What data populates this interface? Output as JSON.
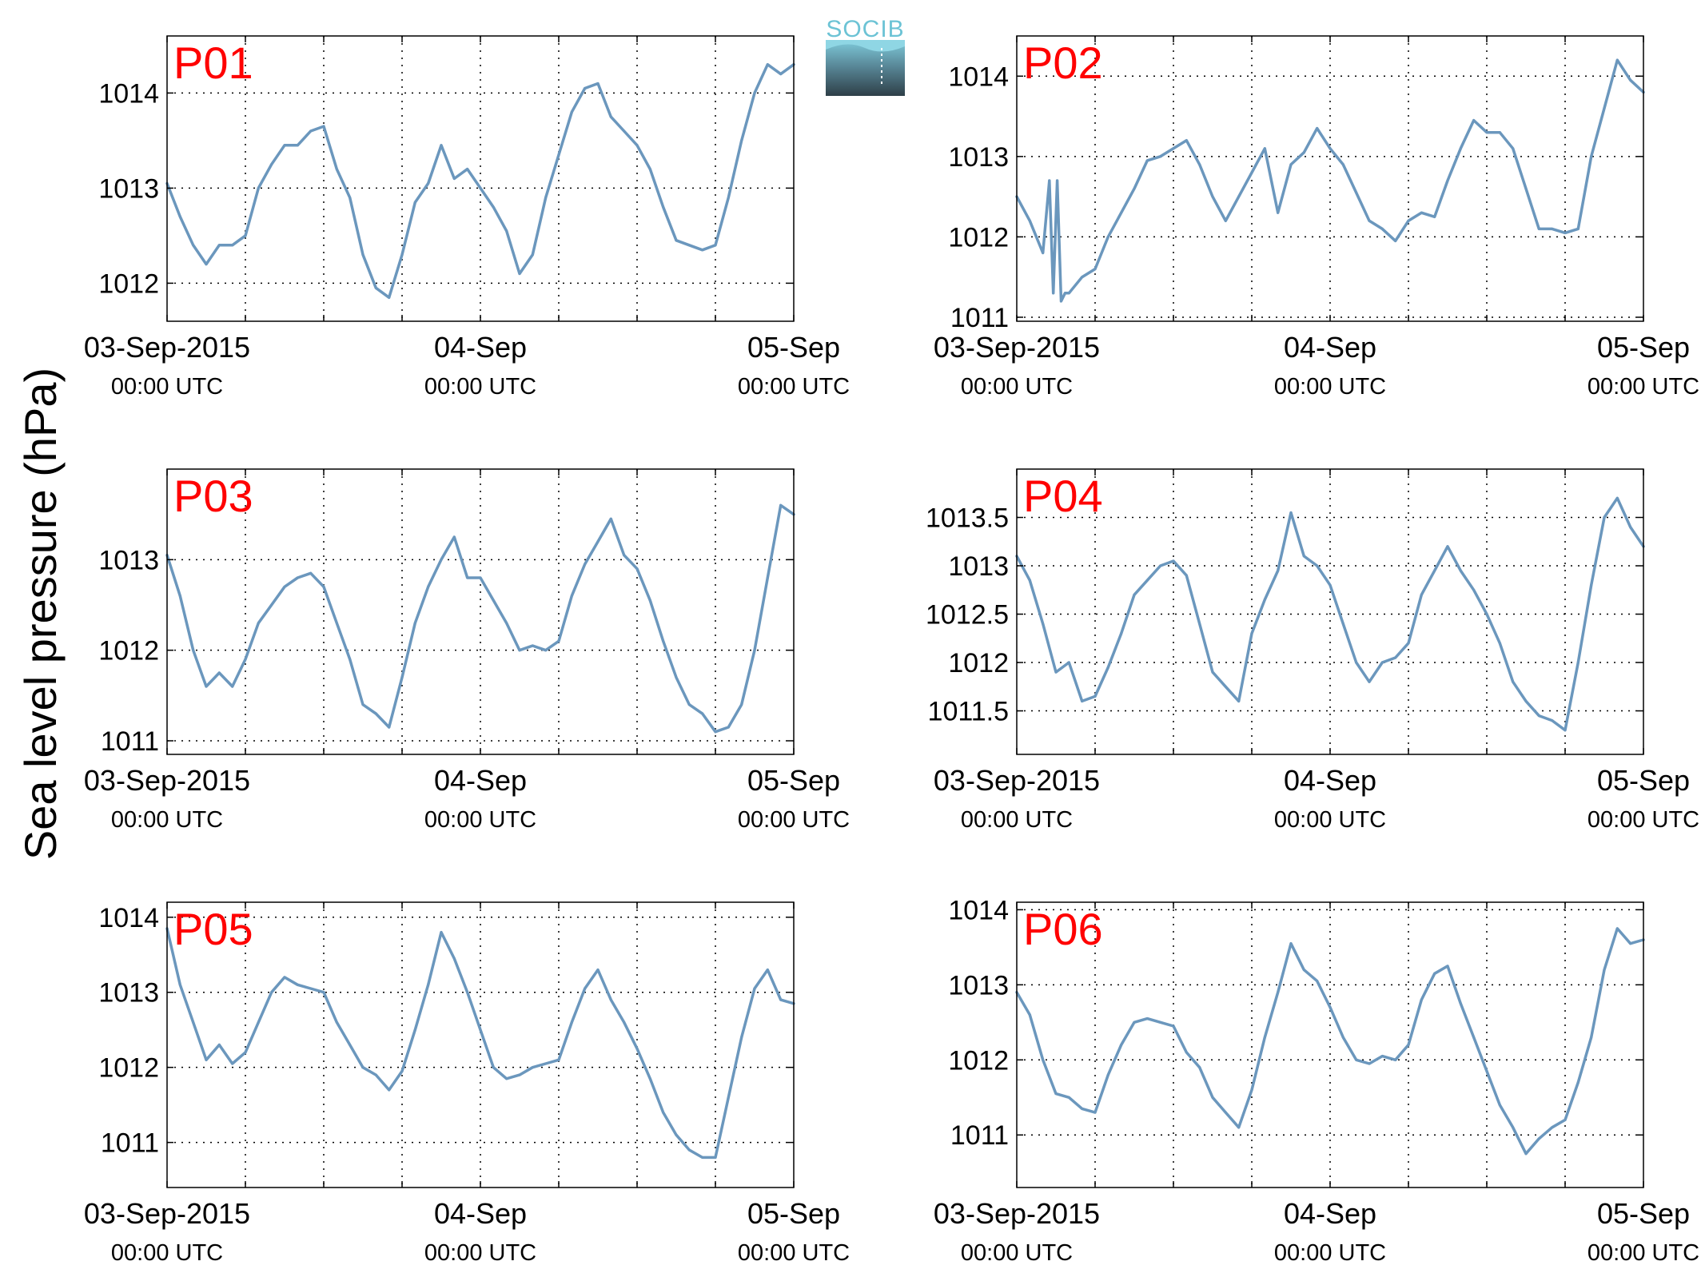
{
  "figure": {
    "ylabel": "Sea level pressure (hPa)",
    "logo_text": "SOCIB"
  },
  "colors": {
    "series": "#6b97bd",
    "panel_label": "#ff0000",
    "axis": "#000000",
    "grid": "#000000",
    "logo_top": "#6cc3d5",
    "logo_bottom": "#2e3f48"
  },
  "chart_data": [
    {
      "type": "line",
      "title": "P01",
      "xlabel": "",
      "ylabel": "",
      "grid": true,
      "xlim": [
        0,
        48
      ],
      "ylim": [
        1011.6,
        1014.6
      ],
      "yticks": [
        1012,
        1013,
        1014
      ],
      "yticklabels": [
        "1012",
        "1013",
        "1014"
      ],
      "xticks": [
        0,
        24,
        48
      ],
      "xticklabels": [
        "03-Sep-2015",
        "04-Sep",
        "05-Sep"
      ],
      "xsublabels": [
        "00:00 UTC",
        "00:00 UTC",
        "00:00 UTC"
      ],
      "x": [
        0,
        1,
        2,
        3,
        4,
        5,
        6,
        7,
        8,
        9,
        10,
        11,
        12,
        13,
        14,
        15,
        16,
        17,
        18,
        19,
        20,
        21,
        22,
        23,
        24,
        25,
        26,
        27,
        28,
        29,
        30,
        31,
        32,
        33,
        34,
        35,
        36,
        37,
        38,
        39,
        40,
        41,
        42,
        43,
        44,
        45,
        46,
        47,
        48
      ],
      "y": [
        1013.05,
        1012.7,
        1012.4,
        1012.2,
        1012.4,
        1012.4,
        1012.5,
        1013.0,
        1013.25,
        1013.45,
        1013.45,
        1013.6,
        1013.65,
        1013.2,
        1012.9,
        1012.3,
        1011.95,
        1011.85,
        1012.3,
        1012.85,
        1013.05,
        1013.45,
        1013.1,
        1013.2,
        1013.0,
        1012.8,
        1012.55,
        1012.1,
        1012.3,
        1012.9,
        1013.35,
        1013.8,
        1014.05,
        1014.1,
        1013.75,
        1013.6,
        1013.45,
        1013.2,
        1012.8,
        1012.45,
        1012.4,
        1012.35,
        1012.4,
        1012.9,
        1013.5,
        1014.0,
        1014.3,
        1014.2,
        1014.3
      ]
    },
    {
      "type": "line",
      "title": "P02",
      "xlabel": "",
      "ylabel": "",
      "grid": true,
      "xlim": [
        0,
        48
      ],
      "ylim": [
        1010.95,
        1014.5
      ],
      "yticks": [
        1011,
        1012,
        1013,
        1014
      ],
      "yticklabels": [
        "1011",
        "1012",
        "1013",
        "1014"
      ],
      "xticks": [
        0,
        24,
        48
      ],
      "xticklabels": [
        "03-Sep-2015",
        "04-Sep",
        "05-Sep"
      ],
      "xsublabels": [
        "00:00 UTC",
        "00:00 UTC",
        "00:00 UTC"
      ],
      "x": [
        0,
        1,
        2,
        2.5,
        2.8,
        3.1,
        3.4,
        3.7,
        4,
        5,
        6,
        7,
        8,
        9,
        10,
        11,
        12,
        13,
        14,
        15,
        16,
        17,
        18,
        19,
        20,
        21,
        22,
        23,
        24,
        25,
        26,
        27,
        28,
        29,
        30,
        31,
        32,
        33,
        34,
        35,
        36,
        37,
        38,
        39,
        40,
        41,
        42,
        43,
        44,
        45,
        46,
        47,
        48
      ],
      "y": [
        1012.5,
        1012.2,
        1011.8,
        1012.7,
        1011.3,
        1012.7,
        1011.2,
        1011.3,
        1011.3,
        1011.5,
        1011.6,
        1012.0,
        1012.3,
        1012.6,
        1012.95,
        1013.0,
        1013.1,
        1013.2,
        1012.9,
        1012.5,
        1012.2,
        1012.5,
        1012.8,
        1013.1,
        1012.3,
        1012.9,
        1013.05,
        1013.35,
        1013.1,
        1012.9,
        1012.55,
        1012.2,
        1012.1,
        1011.95,
        1012.2,
        1012.3,
        1012.25,
        1012.7,
        1013.1,
        1013.45,
        1013.3,
        1013.3,
        1013.1,
        1012.6,
        1012.1,
        1012.1,
        1012.05,
        1012.1,
        1013.0,
        1013.6,
        1014.2,
        1013.95,
        1013.8
      ]
    },
    {
      "type": "line",
      "title": "P03",
      "xlabel": "",
      "ylabel": "",
      "grid": true,
      "xlim": [
        0,
        48
      ],
      "ylim": [
        1010.85,
        1014.0
      ],
      "yticks": [
        1011,
        1012,
        1013
      ],
      "yticklabels": [
        "1011",
        "1012",
        "1013"
      ],
      "xticks": [
        0,
        24,
        48
      ],
      "xticklabels": [
        "03-Sep-2015",
        "04-Sep",
        "05-Sep"
      ],
      "xsublabels": [
        "00:00 UTC",
        "00:00 UTC",
        "00:00 UTC"
      ],
      "x": [
        0,
        1,
        2,
        3,
        4,
        5,
        6,
        7,
        8,
        9,
        10,
        11,
        12,
        13,
        14,
        15,
        16,
        17,
        18,
        19,
        20,
        21,
        22,
        23,
        24,
        25,
        26,
        27,
        28,
        29,
        30,
        31,
        32,
        33,
        34,
        35,
        36,
        37,
        38,
        39,
        40,
        41,
        42,
        43,
        44,
        45,
        46,
        47,
        48
      ],
      "y": [
        1013.05,
        1012.6,
        1012.0,
        1011.6,
        1011.75,
        1011.6,
        1011.9,
        1012.3,
        1012.5,
        1012.7,
        1012.8,
        1012.85,
        1012.7,
        1012.3,
        1011.9,
        1011.4,
        1011.3,
        1011.15,
        1011.7,
        1012.3,
        1012.7,
        1013.0,
        1013.25,
        1012.8,
        1012.8,
        1012.55,
        1012.3,
        1012.0,
        1012.05,
        1012.0,
        1012.1,
        1012.6,
        1012.95,
        1013.2,
        1013.45,
        1013.05,
        1012.9,
        1012.55,
        1012.1,
        1011.7,
        1011.4,
        1011.3,
        1011.1,
        1011.15,
        1011.4,
        1012.0,
        1012.8,
        1013.6,
        1013.5
      ]
    },
    {
      "type": "line",
      "title": "P04",
      "xlabel": "",
      "ylabel": "",
      "grid": true,
      "xlim": [
        0,
        48
      ],
      "ylim": [
        1011.05,
        1014.0
      ],
      "yticks": [
        1011.5,
        1012,
        1012.5,
        1013,
        1013.5
      ],
      "yticklabels": [
        "1011.5",
        "1012",
        "1012.5",
        "1013",
        "1013.5"
      ],
      "xticks": [
        0,
        24,
        48
      ],
      "xticklabels": [
        "03-Sep-2015",
        "04-Sep",
        "05-Sep"
      ],
      "xsublabels": [
        "00:00 UTC",
        "00:00 UTC",
        "00:00 UTC"
      ],
      "x": [
        0,
        1,
        2,
        3,
        4,
        5,
        6,
        7,
        8,
        9,
        10,
        11,
        12,
        13,
        14,
        15,
        16,
        17,
        18,
        19,
        20,
        21,
        22,
        23,
        24,
        25,
        26,
        27,
        28,
        29,
        30,
        31,
        32,
        33,
        34,
        35,
        36,
        37,
        38,
        39,
        40,
        41,
        42,
        43,
        44,
        45,
        46,
        47,
        48
      ],
      "y": [
        1013.1,
        1012.85,
        1012.4,
        1011.9,
        1012.0,
        1011.6,
        1011.65,
        1011.95,
        1012.3,
        1012.7,
        1012.85,
        1013.0,
        1013.05,
        1012.9,
        1012.4,
        1011.9,
        1011.75,
        1011.6,
        1012.3,
        1012.65,
        1012.95,
        1013.55,
        1013.1,
        1013.0,
        1012.8,
        1012.4,
        1012.0,
        1011.8,
        1012.0,
        1012.05,
        1012.2,
        1012.7,
        1012.95,
        1013.2,
        1012.95,
        1012.75,
        1012.5,
        1012.2,
        1011.8,
        1011.6,
        1011.45,
        1011.4,
        1011.3,
        1012.0,
        1012.8,
        1013.5,
        1013.7,
        1013.4,
        1013.2
      ]
    },
    {
      "type": "line",
      "title": "P05",
      "xlabel": "",
      "ylabel": "",
      "grid": true,
      "xlim": [
        0,
        48
      ],
      "ylim": [
        1010.4,
        1014.2
      ],
      "yticks": [
        1011,
        1012,
        1013,
        1014
      ],
      "yticklabels": [
        "1011",
        "1012",
        "1013",
        "1014"
      ],
      "xticks": [
        0,
        24,
        48
      ],
      "xticklabels": [
        "03-Sep-2015",
        "04-Sep",
        "05-Sep"
      ],
      "xsublabels": [
        "00:00 UTC",
        "00:00 UTC",
        "00:00 UTC"
      ],
      "x": [
        0,
        1,
        2,
        3,
        4,
        5,
        6,
        7,
        8,
        9,
        10,
        11,
        12,
        13,
        14,
        15,
        16,
        17,
        18,
        19,
        20,
        21,
        22,
        23,
        24,
        25,
        26,
        27,
        28,
        29,
        30,
        31,
        32,
        33,
        34,
        35,
        36,
        37,
        38,
        39,
        40,
        41,
        42,
        43,
        44,
        45,
        46,
        47,
        48
      ],
      "y": [
        1013.85,
        1013.1,
        1012.6,
        1012.1,
        1012.3,
        1012.05,
        1012.2,
        1012.6,
        1013.0,
        1013.2,
        1013.1,
        1013.05,
        1013.0,
        1012.6,
        1012.3,
        1012.0,
        1011.9,
        1011.7,
        1011.95,
        1012.5,
        1013.1,
        1013.8,
        1013.45,
        1013.0,
        1012.5,
        1012.0,
        1011.85,
        1011.9,
        1012.0,
        1012.05,
        1012.1,
        1012.6,
        1013.05,
        1013.3,
        1012.9,
        1012.6,
        1012.25,
        1011.85,
        1011.4,
        1011.1,
        1010.9,
        1010.8,
        1010.8,
        1011.6,
        1012.4,
        1013.05,
        1013.3,
        1012.9,
        1012.85
      ]
    },
    {
      "type": "line",
      "title": "P06",
      "xlabel": "",
      "ylabel": "",
      "grid": true,
      "xlim": [
        0,
        48
      ],
      "ylim": [
        1010.3,
        1014.1
      ],
      "yticks": [
        1011,
        1012,
        1013,
        1014
      ],
      "yticklabels": [
        "1011",
        "1012",
        "1013",
        "1014"
      ],
      "xticks": [
        0,
        24,
        48
      ],
      "xticklabels": [
        "03-Sep-2015",
        "04-Sep",
        "05-Sep"
      ],
      "xsublabels": [
        "00:00 UTC",
        "00:00 UTC",
        "00:00 UTC"
      ],
      "x": [
        0,
        1,
        2,
        3,
        4,
        5,
        6,
        7,
        8,
        9,
        10,
        11,
        12,
        13,
        14,
        15,
        16,
        17,
        18,
        19,
        20,
        21,
        22,
        23,
        24,
        25,
        26,
        27,
        28,
        29,
        30,
        31,
        32,
        33,
        34,
        35,
        36,
        37,
        38,
        39,
        40,
        41,
        42,
        43,
        44,
        45,
        46,
        47,
        48
      ],
      "y": [
        1012.9,
        1012.6,
        1012.0,
        1011.55,
        1011.5,
        1011.35,
        1011.3,
        1011.8,
        1012.2,
        1012.5,
        1012.55,
        1012.5,
        1012.45,
        1012.1,
        1011.9,
        1011.5,
        1011.3,
        1011.1,
        1011.6,
        1012.3,
        1012.9,
        1013.55,
        1013.2,
        1013.05,
        1012.7,
        1012.3,
        1012.0,
        1011.95,
        1012.05,
        1012.0,
        1012.2,
        1012.8,
        1013.15,
        1013.25,
        1012.75,
        1012.3,
        1011.85,
        1011.4,
        1011.1,
        1010.75,
        1010.95,
        1011.1,
        1011.2,
        1011.7,
        1012.3,
        1013.2,
        1013.75,
        1013.55,
        1013.6
      ]
    }
  ]
}
